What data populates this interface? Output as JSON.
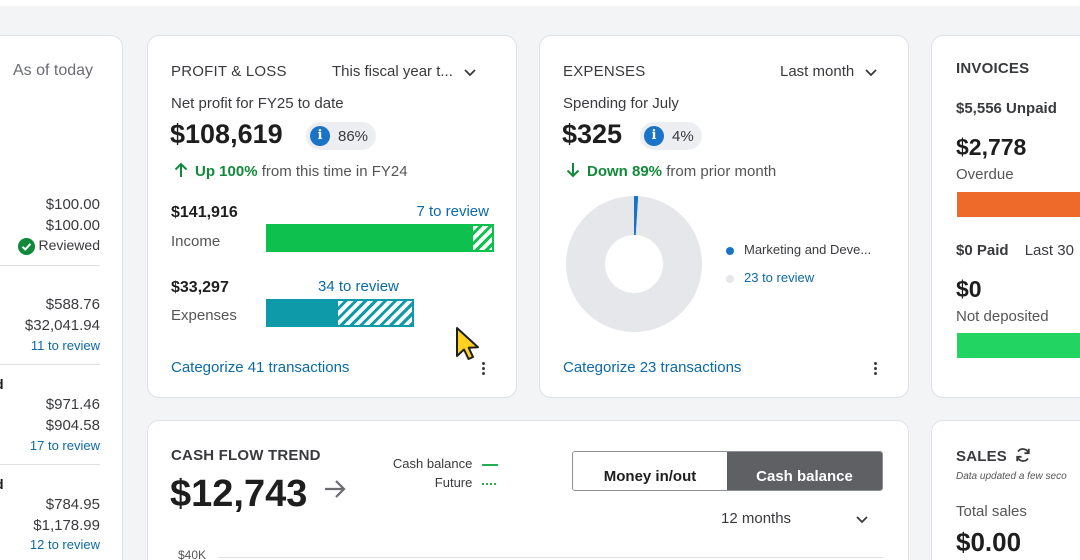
{
  "left_panel": {
    "header": "As of today",
    "group1": {
      "values": [
        "$100.00",
        "$100.00"
      ],
      "status": "Reviewed"
    },
    "group2": {
      "values": [
        "$588.76",
        "$32,041.94"
      ],
      "review": "11 to review"
    },
    "group3": {
      "label": "d",
      "values": [
        "$971.46",
        "$904.58"
      ],
      "review": "17 to review"
    },
    "group4": {
      "label": "d",
      "values": [
        "$784.95",
        "$1,178.99"
      ],
      "review": "12 to review"
    }
  },
  "profit_loss": {
    "title": "PROFIT & LOSS",
    "period": "This fiscal year t...",
    "subtitle": "Net profit for FY25 to date",
    "amount": "$108,619",
    "percent": "86%",
    "change_strong": "Up 100%",
    "change_rest": "from this time in FY24",
    "income": {
      "amount": "$141,916",
      "label": "Income",
      "review": "7 to review",
      "reviewed_fraction": 0.9
    },
    "expenses": {
      "amount": "$33,297",
      "label": "Expenses",
      "review": "34 to review",
      "reviewed_fraction": 0.47
    },
    "footer": "Categorize 41 transactions",
    "colors": {
      "income": "#0ec04e",
      "expenses": "#0f9aaa",
      "up": "#108a3a"
    }
  },
  "expenses": {
    "title": "EXPENSES",
    "period": "Last month",
    "subtitle": "Spending for July",
    "amount": "$325",
    "percent": "4%",
    "change_strong": "Down 89%",
    "change_rest": "from prior month",
    "legend": [
      {
        "label": "Marketing and Deve...",
        "color": "#1a73c6",
        "share": 0.01
      },
      {
        "label": "23 to review",
        "color": "#e6e7ea",
        "share": 0.99
      }
    ],
    "footer": "Categorize 23 transactions"
  },
  "invoices": {
    "title": "INVOICES",
    "unpaid": "$5,556 Unpaid",
    "overdue_amount": "$2,778",
    "overdue_label": "Overdue",
    "paid": "$0 Paid",
    "paid_period": "Last 30",
    "deposited_amount": "$0",
    "deposited_label": "Not deposited",
    "colors": {
      "overdue": "#ee6a2a",
      "deposited": "#22d462"
    }
  },
  "cash_flow": {
    "title": "CASH FLOW TREND",
    "amount": "$12,743",
    "legend_balance": "Cash balance",
    "legend_future": "Future",
    "toggle_left": "Money in/out",
    "toggle_right": "Cash balance",
    "period": "12 months",
    "axis_label": "$40K"
  },
  "sales": {
    "title": "SALES",
    "note": "Data updated a few seco",
    "total_label": "Total sales",
    "total_amount": "$0.00"
  }
}
